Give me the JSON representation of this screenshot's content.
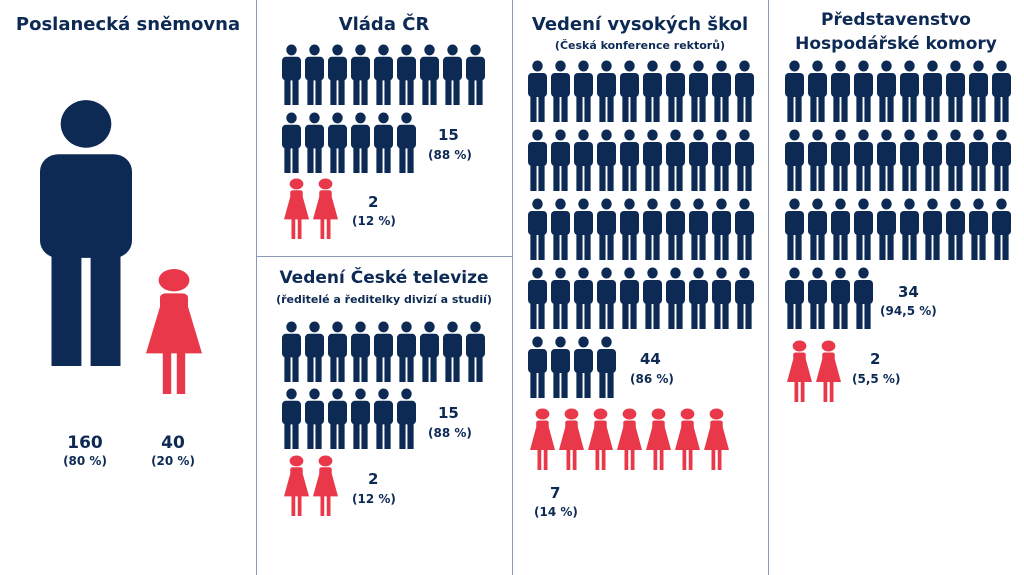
{
  "colors": {
    "men": "#0d2a55",
    "women": "#e8384a"
  },
  "chart_data": [
    {
      "type": "pictogram",
      "title": "Poslanecká sněmovna",
      "subtitle": "",
      "men": {
        "value": 160,
        "value_label": "160",
        "percent_label": "(80 %)"
      },
      "women": {
        "value": 40,
        "value_label": "40",
        "percent_label": "(20 %)"
      }
    },
    {
      "type": "pictogram",
      "title": "Vláda ČR",
      "subtitle": "",
      "men": {
        "value": 15,
        "value_label": "15",
        "percent_label": "(88 %)"
      },
      "women": {
        "value": 2,
        "value_label": "2",
        "percent_label": "(12 %)"
      }
    },
    {
      "type": "pictogram",
      "title": "Vedení České televize",
      "subtitle": "(ředitelé a ředitelky divizí a studií)",
      "men": {
        "value": 15,
        "value_label": "15",
        "percent_label": "(88 %)"
      },
      "women": {
        "value": 2,
        "value_label": "2",
        "percent_label": "(12 %)"
      }
    },
    {
      "type": "pictogram",
      "title": "Vedení vysokých škol",
      "subtitle": "(Česká konference rektorů)",
      "men": {
        "value": 44,
        "value_label": "44",
        "percent_label": "(86 %)"
      },
      "women": {
        "value": 7,
        "value_label": "7",
        "percent_label": "(14 %)"
      }
    },
    {
      "type": "pictogram",
      "title": "Představenstvo Hospodářské komory",
      "subtitle": "",
      "men": {
        "value": 34,
        "value_label": "34",
        "percent_label": "(94,5 %)"
      },
      "women": {
        "value": 2,
        "value_label": "2",
        "percent_label": "(5,5 %)"
      }
    }
  ]
}
